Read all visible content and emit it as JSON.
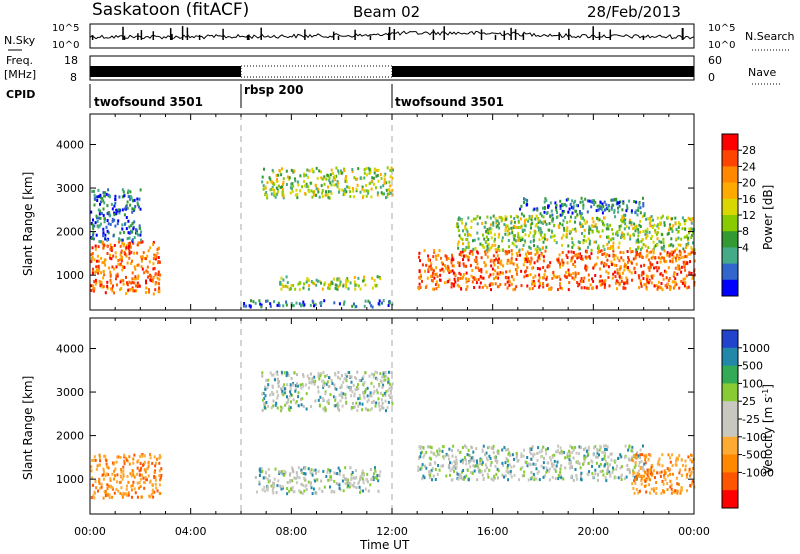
{
  "header": {
    "radar": "Saskatoon (fitACF)",
    "beam": "Beam 02",
    "date": "28/Feb/2013"
  },
  "noise_panel": {
    "left_label": "N.Sky",
    "right_label": "N.Search",
    "left_ticks": [
      "10^5",
      "10^0"
    ],
    "right_ticks": [
      "10^5",
      "10^0"
    ]
  },
  "freq_panel": {
    "left_label": "Freq.",
    "left_unit": "[MHz]",
    "right_label": "Nave",
    "left_ticks": [
      "18",
      "8"
    ],
    "right_ticks": [
      "60",
      "0"
    ]
  },
  "cpid": {
    "label": "CPID",
    "segments": [
      {
        "name": "twofsound 3501",
        "start_hour": 0,
        "end_hour": 6
      },
      {
        "name": "rbsp 200",
        "start_hour": 6,
        "end_hour": 12
      },
      {
        "name": "twofsound 3501",
        "start_hour": 12,
        "end_hour": 24
      }
    ]
  },
  "chart_data": [
    {
      "type": "heatmap",
      "title": "",
      "xlabel": "",
      "ylabel": "Slant Range [km]",
      "ylim": [
        200,
        4700
      ],
      "yticks": [
        "1000",
        "2000",
        "3000",
        "4000"
      ],
      "xlim_hours": [
        0,
        24
      ],
      "colorbar": {
        "label": "Power [dB]",
        "ticks": [
          "28",
          "24",
          "20",
          "16",
          "12",
          "8",
          "4"
        ],
        "colors": [
          "#ff0000",
          "#ff4400",
          "#ff8800",
          "#ffaa00",
          "#d8d800",
          "#88cc00",
          "#339933",
          "#44aa88",
          "#3366cc",
          "#0000ff"
        ]
      },
      "echo_regions": [
        {
          "start_hour": 0.0,
          "end_hour": 2.8,
          "range_low_km": 600,
          "range_high_km": 1800,
          "level": "strong"
        },
        {
          "start_hour": 0.0,
          "end_hour": 2.0,
          "range_low_km": 1800,
          "range_high_km": 3000,
          "level": "weak"
        },
        {
          "start_hour": 6.8,
          "end_hour": 12.0,
          "range_low_km": 2800,
          "range_high_km": 3500,
          "level": "medium"
        },
        {
          "start_hour": 7.5,
          "end_hour": 11.5,
          "range_low_km": 700,
          "range_high_km": 1000,
          "level": "medium"
        },
        {
          "start_hour": 6.0,
          "end_hour": 12.0,
          "range_low_km": 300,
          "range_high_km": 450,
          "level": "weak"
        },
        {
          "start_hour": 13.0,
          "end_hour": 24.0,
          "range_low_km": 700,
          "range_high_km": 1600,
          "level": "strong"
        },
        {
          "start_hour": 14.5,
          "end_hour": 24.0,
          "range_low_km": 1600,
          "range_high_km": 2400,
          "level": "medium"
        },
        {
          "start_hour": 17.0,
          "end_hour": 22.0,
          "range_low_km": 2400,
          "range_high_km": 2800,
          "level": "weak"
        }
      ]
    },
    {
      "type": "heatmap",
      "title": "",
      "xlabel": "Time UT",
      "ylabel": "Slant Range [km]",
      "ylim": [
        200,
        4700
      ],
      "yticks": [
        "1000",
        "2000",
        "3000",
        "4000"
      ],
      "xticks": [
        "00:00",
        "04:00",
        "08:00",
        "12:00",
        "16:00",
        "20:00",
        "00:00"
      ],
      "colorbar": {
        "label": "Velocity [m s^-1]",
        "ticks": [
          "1000",
          "500",
          "100",
          "25",
          "-25",
          "-100",
          "-500",
          "-1000"
        ],
        "colors": [
          "#2244cc",
          "#2288aa",
          "#33aa55",
          "#88cc33",
          "#c8c8c0",
          "#c8c8c0",
          "#ffaa33",
          "#ff8800",
          "#ff5500",
          "#ff0000"
        ]
      },
      "echo_regions": [
        {
          "start_hour": 0.0,
          "end_hour": 2.8,
          "range_low_km": 600,
          "range_high_km": 1600,
          "level": "toward"
        },
        {
          "start_hour": 6.8,
          "end_hour": 12.0,
          "range_low_km": 2600,
          "range_high_km": 3500,
          "level": "ground"
        },
        {
          "start_hour": 6.5,
          "end_hour": 11.5,
          "range_low_km": 700,
          "range_high_km": 1300,
          "level": "ground"
        },
        {
          "start_hour": 13.0,
          "end_hour": 22.0,
          "range_low_km": 1000,
          "range_high_km": 1800,
          "level": "ground"
        },
        {
          "start_hour": 21.5,
          "end_hour": 24.0,
          "range_low_km": 700,
          "range_high_km": 1600,
          "level": "toward"
        }
      ]
    }
  ]
}
